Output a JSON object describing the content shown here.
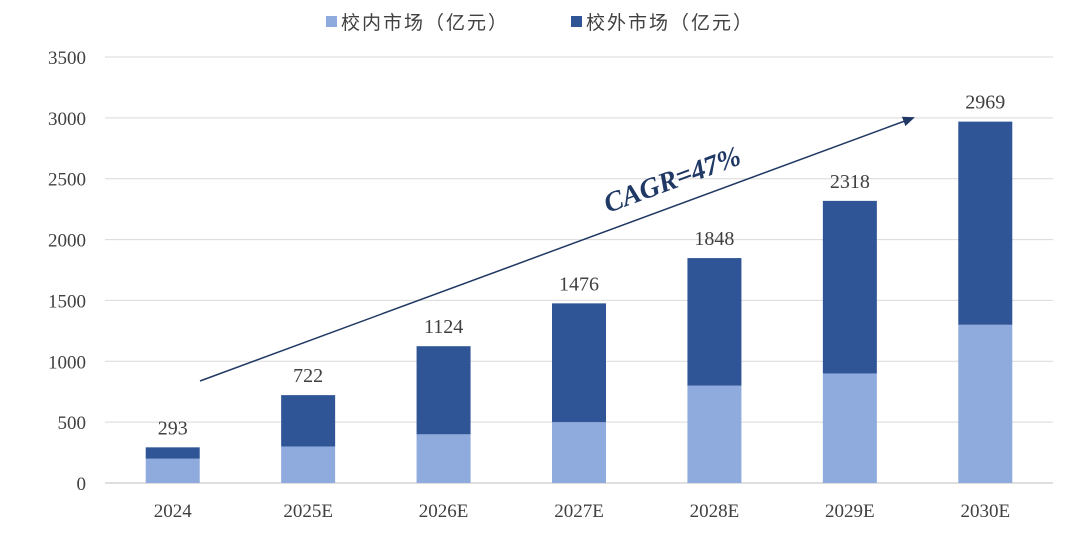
{
  "colors": {
    "in_school": "#8FAADC",
    "off_school": "#2F5597",
    "annotation": "#1F3864",
    "grid": "#D9D9D9",
    "axis_text": "#404040"
  },
  "legend": {
    "items": [
      {
        "label": "校内市场（亿元）"
      },
      {
        "label": "校外市场（亿元）"
      }
    ]
  },
  "annotation": {
    "text": "CAGR=47%"
  },
  "chart_data": {
    "type": "bar",
    "stacked": true,
    "categories": [
      "2024",
      "2025E",
      "2026E",
      "2027E",
      "2028E",
      "2029E",
      "2030E"
    ],
    "series": [
      {
        "name": "校内市场（亿元）",
        "values": [
          200,
          300,
          400,
          500,
          800,
          900,
          1300
        ]
      },
      {
        "name": "校外市场（亿元）",
        "values": [
          93,
          422,
          724,
          976,
          1048,
          1418,
          1669
        ]
      }
    ],
    "totals": [
      293,
      722,
      1124,
      1476,
      1848,
      2318,
      2969
    ],
    "total_labels": [
      "293",
      "722",
      "1124",
      "1476",
      "1848",
      "2318",
      "2969"
    ],
    "y_ticks": [
      0,
      500,
      1000,
      1500,
      2000,
      2500,
      3000,
      3500
    ],
    "ylim": [
      0,
      3500
    ],
    "grid": true,
    "legend_position": "top-center",
    "annotations": [
      {
        "text": "CAGR=47%",
        "type": "arrow"
      }
    ]
  }
}
